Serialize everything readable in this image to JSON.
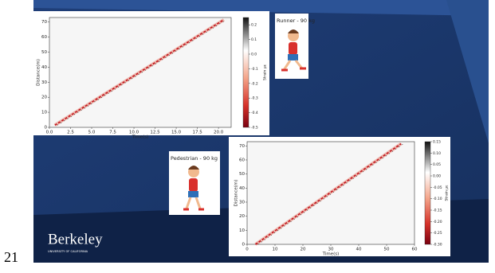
{
  "slide_number": "21",
  "logo": {
    "name": "Berkeley",
    "subtitle": "UNIVERSITY OF CALIFORNIA"
  },
  "plots": [
    {
      "title": "Runner - 90 kg",
      "xlabel": "Time(s)",
      "ylabel": "Distance(m)",
      "colorbar_label": "Strain με",
      "xlim": [
        0,
        21.5
      ],
      "xticks": [
        {
          "value": 0,
          "label": "0.0"
        },
        2.5,
        {
          "value": 5,
          "label": "5.0"
        },
        7.5,
        {
          "value": 10,
          "label": "10.0"
        },
        12.5,
        {
          "value": 15,
          "label": "15.0"
        },
        17.5,
        {
          "value": 20,
          "label": "20.0"
        }
      ],
      "ylim": [
        0,
        73
      ],
      "yticks": [
        0,
        10,
        20,
        30,
        40,
        50,
        60,
        70
      ],
      "clim": [
        -0.5,
        0.25
      ],
      "cticks": [
        0.2,
        0.1,
        {
          "value": 0,
          "label": "0.0"
        },
        -0.1,
        -0.2,
        -0.3,
        -0.4,
        -0.5
      ]
    },
    {
      "title": "Pedestrian - 90 kg",
      "xlabel": "Time(s)",
      "ylabel": "Distance(m)",
      "colorbar_label": "Strain με",
      "xlim": [
        0,
        60
      ],
      "xticks": [
        0,
        10,
        20,
        30,
        40,
        50,
        60
      ],
      "ylim": [
        0,
        73
      ],
      "yticks": [
        0,
        10,
        20,
        30,
        40,
        50,
        60,
        70
      ],
      "clim": [
        -0.3,
        0.15
      ],
      "cticks": [
        0.15,
        {
          "value": 0.1,
          "label": "0.10"
        },
        0.05,
        {
          "value": 0,
          "label": "0.00"
        },
        -0.05,
        {
          "value": -0.1,
          "label": "-0.10"
        },
        -0.15,
        {
          "value": -0.2,
          "label": "-0.20"
        },
        -0.25,
        {
          "value": -0.3,
          "label": "-0.30"
        }
      ]
    }
  ]
}
